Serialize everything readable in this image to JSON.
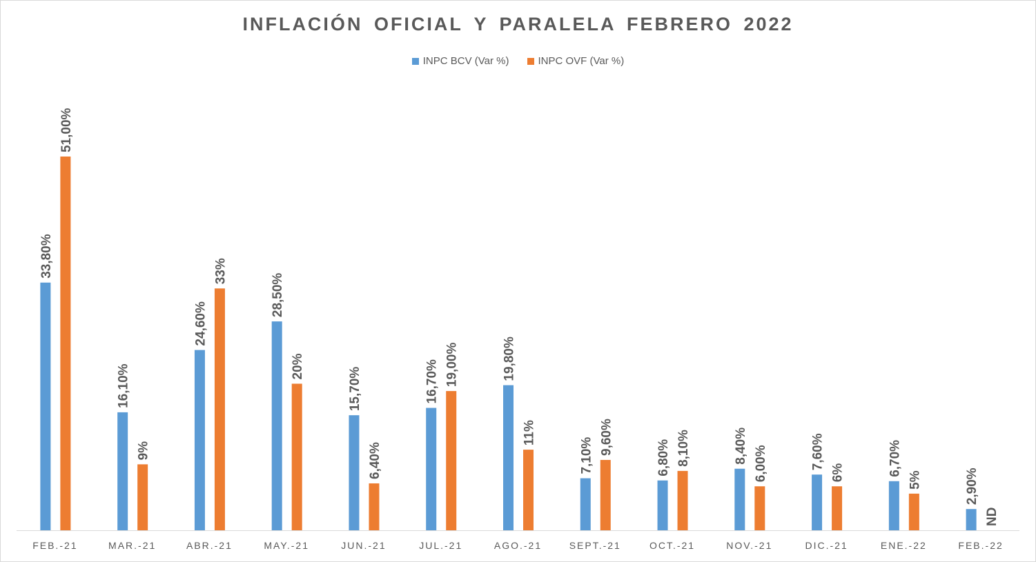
{
  "chart_data": {
    "type": "bar",
    "title": "INFLACIÓN OFICIAL Y PARALELA FEBRERO 2022",
    "xlabel": "",
    "ylabel": "",
    "ylim": [
      0,
      60
    ],
    "grid": false,
    "legend_position": "top-center",
    "categories": [
      "FEB.-21",
      "MAR.-21",
      "ABR.-21",
      "MAY.-21",
      "JUN.-21",
      "JUL.-21",
      "AGO.-21",
      "SEPT.-21",
      "OCT.-21",
      "NOV.-21",
      "DIC.-21",
      "ENE.-22",
      "FEB.-22"
    ],
    "series": [
      {
        "name": "INPC BCV (Var %)",
        "color": "#5b9bd5",
        "values": [
          33.8,
          16.1,
          24.6,
          28.5,
          15.7,
          16.7,
          19.8,
          7.1,
          6.8,
          8.4,
          7.6,
          6.7,
          2.9
        ],
        "labels": [
          "33,80%",
          "16,10%",
          "24,60%",
          "28,50%",
          "15,70%",
          "16,70%",
          "19,80%",
          "7,10%",
          "6,80%",
          "8,40%",
          "7,60%",
          "6,70%",
          "2,90%"
        ]
      },
      {
        "name": "INPC OVF (Var %)",
        "color": "#ed7d31",
        "values": [
          51.0,
          9.0,
          33.0,
          20.0,
          6.4,
          19.0,
          11.0,
          9.6,
          8.1,
          6.0,
          6.0,
          5.0,
          null
        ],
        "labels": [
          "51,00%",
          "9%",
          "33%",
          "20%",
          "6,40%",
          "19,00%",
          "11%",
          "9,60%",
          "8,10%",
          "6,00%",
          "6%",
          "5%",
          "ND"
        ]
      }
    ]
  }
}
